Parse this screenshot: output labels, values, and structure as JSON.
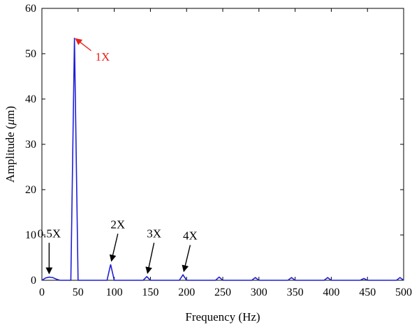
{
  "chart_data": {
    "type": "line",
    "title": "",
    "xlabel": "Frequency (Hz)",
    "ylabel_prefix": "Amplitude (",
    "ylabel_unit_symbol": "μ",
    "ylabel_suffix": "m)",
    "xlim": [
      0,
      500
    ],
    "ylim": [
      0,
      60
    ],
    "xticks": [
      0,
      50,
      100,
      150,
      200,
      250,
      300,
      350,
      400,
      450,
      500
    ],
    "yticks": [
      0,
      10,
      20,
      30,
      40,
      50,
      60
    ],
    "grid": false,
    "colors": {
      "series": "#1f1fd6",
      "highlight": "#e8211c",
      "axis": "#000000"
    },
    "series": [
      {
        "x": [
          0,
          5,
          10,
          15,
          20,
          25,
          30,
          35,
          40,
          45,
          50,
          52,
          90,
          95,
          100,
          140,
          145,
          150,
          190,
          195,
          200,
          240,
          245,
          250,
          290,
          295,
          300,
          340,
          345,
          350,
          390,
          395,
          400,
          440,
          445,
          450,
          490,
          495,
          500
        ],
        "y": [
          0,
          0.5,
          0.7,
          0.6,
          0.25,
          0,
          0,
          0,
          0,
          53.5,
          0,
          0,
          0,
          3.5,
          0,
          0,
          0.8,
          0,
          0,
          1.2,
          0,
          0,
          0.7,
          0,
          0,
          0.6,
          0,
          0,
          0.6,
          0,
          0,
          0.6,
          0,
          0,
          0.4,
          0,
          0,
          0.6,
          0
        ]
      }
    ],
    "annotations": [
      {
        "text": "1X",
        "x": 45,
        "y": 53.5,
        "label_x": 70,
        "label_y": 48.5,
        "color": "highlight"
      },
      {
        "text": "0.5X",
        "x": 10,
        "y": 0.7,
        "label_x": 10,
        "label_y": 9.5,
        "color": "axis"
      },
      {
        "text": "2X",
        "x": 95,
        "y": 3.5,
        "label_x": 105,
        "label_y": 11.5,
        "color": "axis"
      },
      {
        "text": "3X",
        "x": 145,
        "y": 0.8,
        "label_x": 155,
        "label_y": 9.5,
        "color": "axis"
      },
      {
        "text": "4X",
        "x": 195,
        "y": 1.2,
        "label_x": 205,
        "label_y": 9,
        "color": "axis"
      }
    ]
  }
}
